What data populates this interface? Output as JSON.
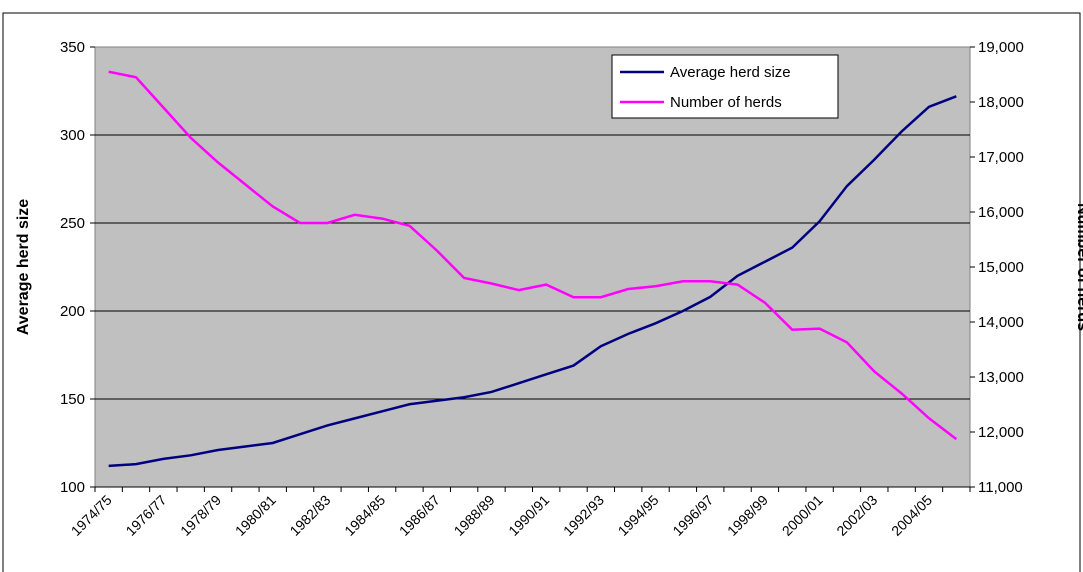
{
  "chart_data": {
    "type": "line",
    "categories": [
      "1974/75",
      null,
      "1976/77",
      null,
      "1978/79",
      null,
      "1980/81",
      null,
      "1982/83",
      null,
      "1984/85",
      null,
      "1986/87",
      null,
      "1988/89",
      null,
      "1990/91",
      null,
      "1992/93",
      null,
      "1994/95",
      null,
      "1996/97",
      null,
      "1998/99",
      null,
      "2000/01",
      null,
      "2002/03",
      null,
      "2004/05",
      null
    ],
    "y_label": "Average herd size",
    "y2_label": "Number of herds",
    "ylim": [
      100,
      350
    ],
    "yticks": [
      100,
      150,
      200,
      250,
      300,
      350
    ],
    "y2lim": [
      11000,
      19000
    ],
    "y2ticks": [
      {
        "value": 11000,
        "label": "11,000"
      },
      {
        "value": 12000,
        "label": "12,000"
      },
      {
        "value": 13000,
        "label": "13,000"
      },
      {
        "value": 14000,
        "label": "14,000"
      },
      {
        "value": 15000,
        "label": "15,000"
      },
      {
        "value": 16000,
        "label": "16,000"
      },
      {
        "value": 17000,
        "label": "17,000"
      },
      {
        "value": 18000,
        "label": "18,000"
      },
      {
        "value": 19000,
        "label": "19,000"
      }
    ],
    "grid": true,
    "legend": "top-right",
    "series": [
      {
        "name": "Average herd size",
        "color": "#000080",
        "values": [
          112,
          113,
          116,
          118,
          121,
          123,
          125,
          130,
          135,
          139,
          143,
          147,
          149,
          151,
          154,
          159,
          164,
          169,
          180,
          187,
          193,
          200,
          208,
          220,
          228,
          236,
          251,
          271,
          286,
          302,
          316,
          322
        ]
      },
      {
        "name": "Number of herds",
        "color": "#ff00ff",
        "axis": "y2",
        "values": [
          18550,
          18450,
          17900,
          17350,
          16900,
          16500,
          16100,
          15800,
          15800,
          15950,
          15880,
          15750,
          15300,
          14800,
          14700,
          14580,
          14680,
          14450,
          14450,
          14600,
          14650,
          14740,
          14740,
          14680,
          14350,
          13860,
          13880,
          13630,
          13100,
          12700,
          12250,
          11870
        ]
      }
    ]
  }
}
